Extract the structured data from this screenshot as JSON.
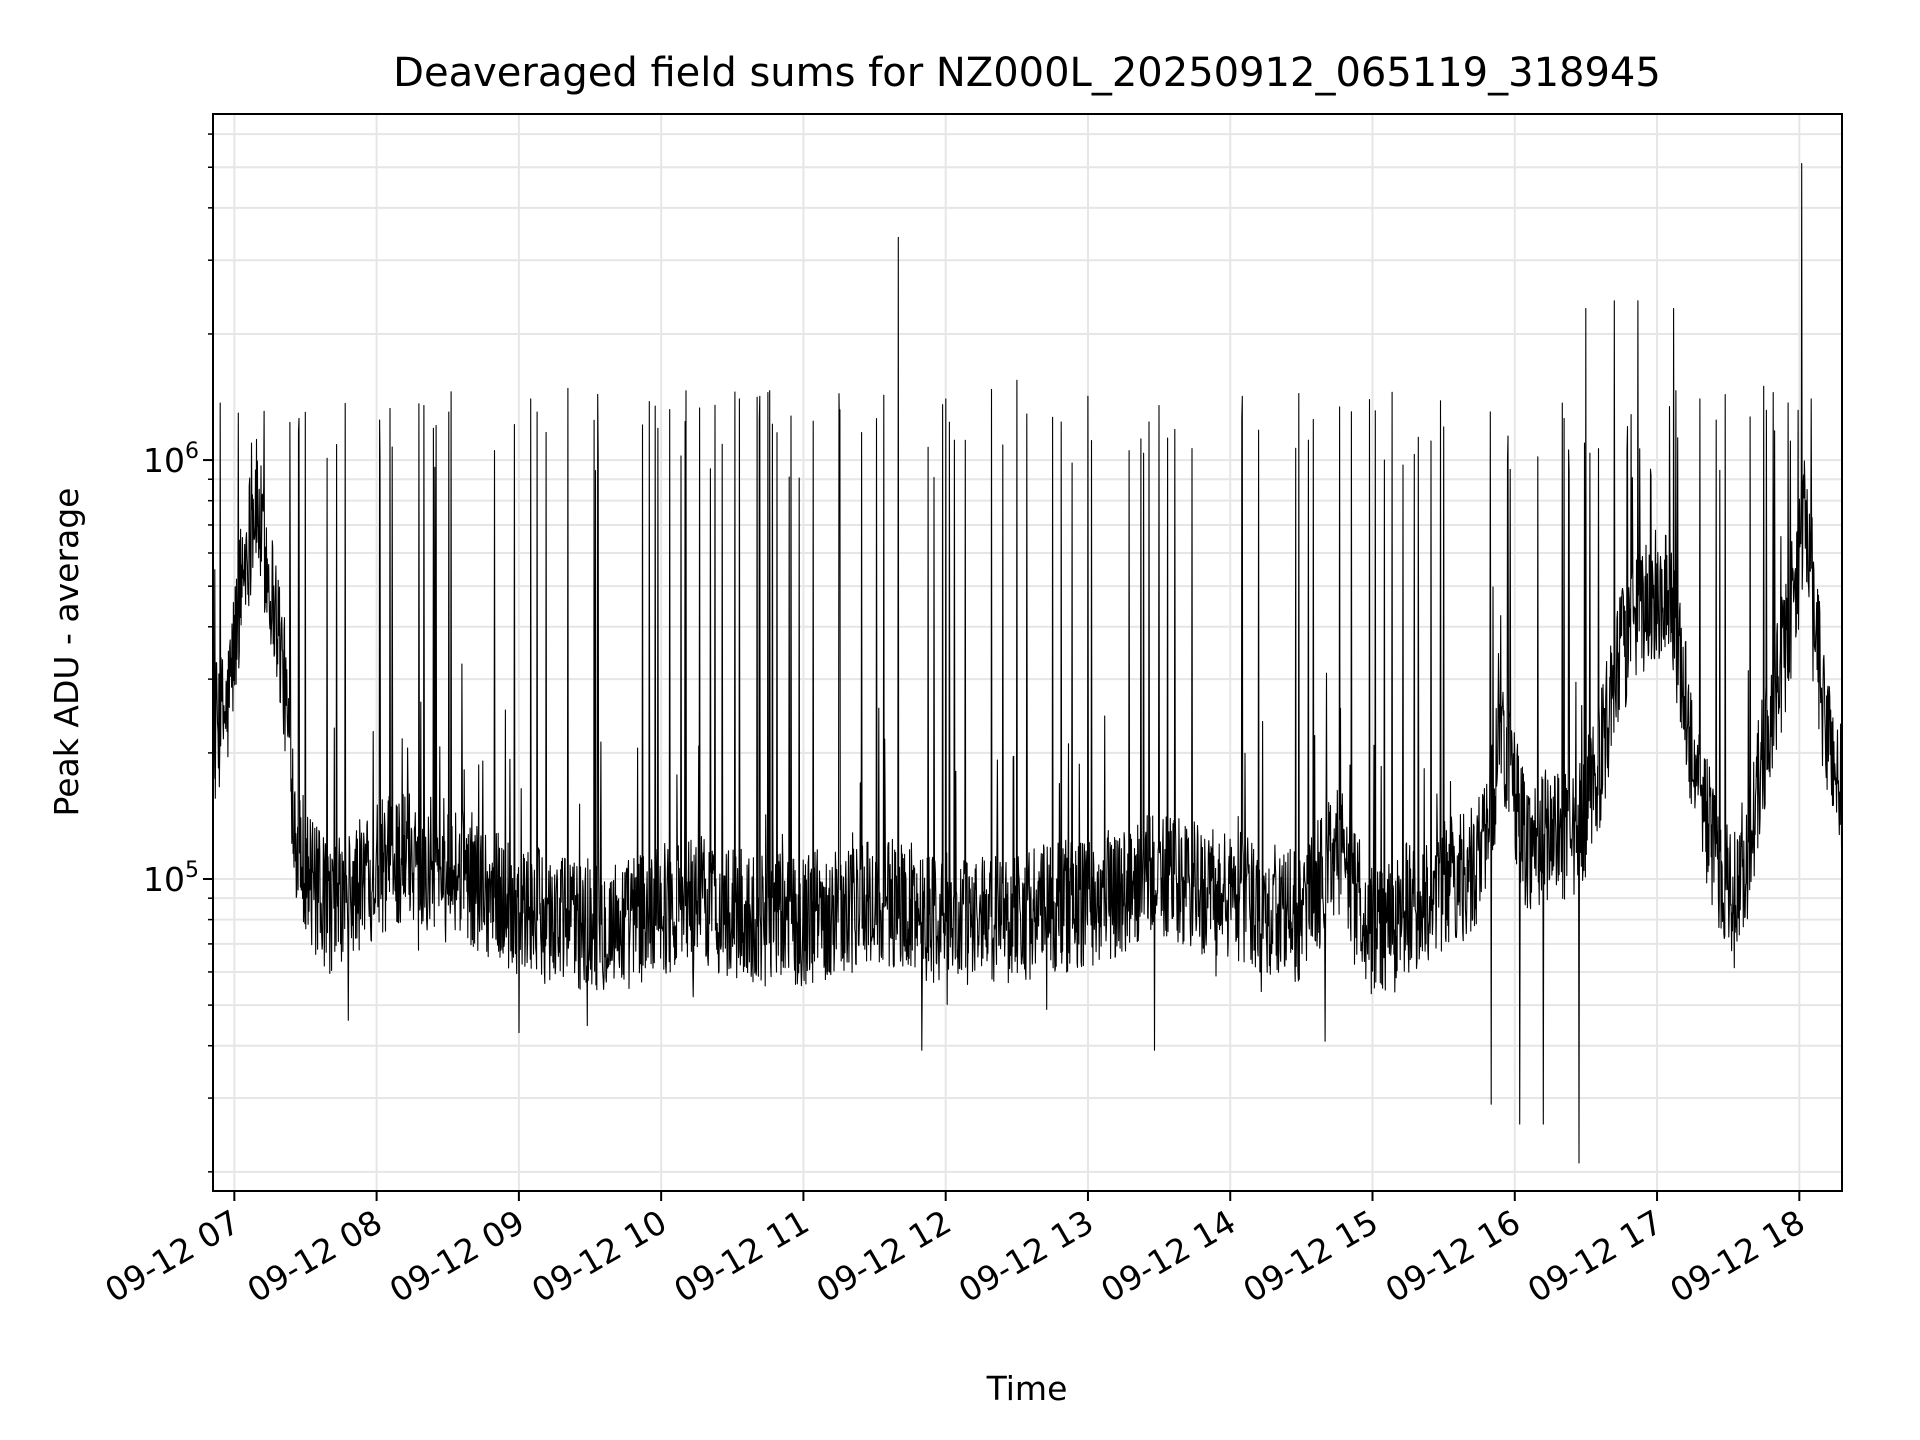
{
  "chart_data": {
    "type": "line",
    "title": "Deaveraged field sums for NZ000L_20250912_065119_318945",
    "xlabel": "Time",
    "ylabel": "Peak ADU - average",
    "x_scale": "time",
    "y_scale": "log",
    "xlim": [
      "09-12 06:51",
      "09-12 18:18"
    ],
    "ylim": [
      18000,
      6700000
    ],
    "grid": true,
    "x_ticks": [
      "09-12 07",
      "09-12 08",
      "09-12 09",
      "09-12 10",
      "09-12 11",
      "09-12 12",
      "09-12 13",
      "09-12 14",
      "09-12 15",
      "09-12 16",
      "09-12 17",
      "09-12 18"
    ],
    "y_ticks": [
      {
        "base": "10",
        "exp": "5",
        "value": 100000
      },
      {
        "base": "10",
        "exp": "6",
        "value": 1000000
      }
    ],
    "series": [
      {
        "color": "#000000",
        "x": [
          "09-12 06:51",
          "09-12 06:57",
          "09-12 07:03",
          "09-12 07:09",
          "09-12 07:14",
          "09-12 07:18",
          "09-12 07:21",
          "09-12 07:26",
          "09-12 07:33",
          "09-12 07:40",
          "09-12 07:48",
          "09-12 07:55",
          "09-12 08:05",
          "09-12 08:15",
          "09-12 08:25",
          "09-12 08:35",
          "09-12 08:45",
          "09-12 09:00",
          "09-12 09:15",
          "09-12 09:30",
          "09-12 09:45",
          "09-12 10:00",
          "09-12 10:15",
          "09-12 10:30",
          "09-12 10:45",
          "09-12 11:00",
          "09-12 11:15",
          "09-12 11:30",
          "09-12 11:45",
          "09-12 12:00",
          "09-12 12:15",
          "09-12 12:30",
          "09-12 12:45",
          "09-12 13:00",
          "09-12 13:15",
          "09-12 13:30",
          "09-12 13:45",
          "09-12 14:00",
          "09-12 14:15",
          "09-12 14:30",
          "09-12 14:45",
          "09-12 15:00",
          "09-12 15:15",
          "09-12 15:30",
          "09-12 15:45",
          "09-12 15:55",
          "09-12 16:05",
          "09-12 16:15",
          "09-12 16:25",
          "09-12 16:35",
          "09-12 16:45",
          "09-12 16:55",
          "09-12 17:05",
          "09-12 17:15",
          "09-12 17:25",
          "09-12 17:35",
          "09-12 17:45",
          "09-12 17:55",
          "09-12 18:03",
          "09-12 18:10",
          "09-12 18:17"
        ],
        "y": [
          230000,
          250000,
          520000,
          800000,
          550000,
          420000,
          300000,
          130000,
          95000,
          85000,
          90000,
          100000,
          110000,
          115000,
          110000,
          105000,
          95000,
          85000,
          80000,
          78000,
          78000,
          85000,
          90000,
          82000,
          80000,
          80000,
          85000,
          88000,
          85000,
          80000,
          80000,
          82000,
          85000,
          88000,
          95000,
          100000,
          95000,
          90000,
          85000,
          80000,
          120000,
          75000,
          85000,
          95000,
          110000,
          220000,
          120000,
          130000,
          120000,
          180000,
          350000,
          450000,
          500000,
          200000,
          110000,
          90000,
          200000,
          380000,
          750000,
          250000,
          170000
        ],
        "peak_x": [
          "09-12 07:30",
          "09-12 08:20",
          "09-12 09:05",
          "09-12 09:55",
          "09-12 10:33",
          "09-12 10:45",
          "09-12 11:15",
          "09-12 11:40",
          "09-12 12:00",
          "09-12 12:30",
          "09-12 13:00",
          "09-12 13:30",
          "09-12 14:05",
          "09-12 14:35",
          "09-12 15:05",
          "09-12 15:30",
          "09-12 15:58",
          "09-12 16:30",
          "09-12 16:42",
          "09-12 16:52",
          "09-12 17:07",
          "09-12 17:18",
          "09-12 17:45",
          "09-12 18:01",
          "09-12 18:05"
        ],
        "peak_y": [
          1300000,
          1350000,
          1400000,
          1380000,
          1400000,
          1450000,
          1440000,
          3400000,
          1400000,
          1550000,
          1420000,
          1350000,
          1420000,
          1250000,
          1000000,
          1200000,
          950000,
          2300000,
          2400000,
          2400000,
          2300000,
          1400000,
          1500000,
          5100000,
          1400000
        ],
        "dip_x": [
          "09-12 07:48",
          "09-12 09:00",
          "09-12 11:50",
          "09-12 13:28",
          "09-12 14:40",
          "09-12 15:50",
          "09-12 16:02",
          "09-12 16:12",
          "09-12 16:27"
        ],
        "dip_y": [
          46000,
          43000,
          39000,
          39000,
          41000,
          29000,
          26000,
          26000,
          21000
        ]
      }
    ]
  }
}
